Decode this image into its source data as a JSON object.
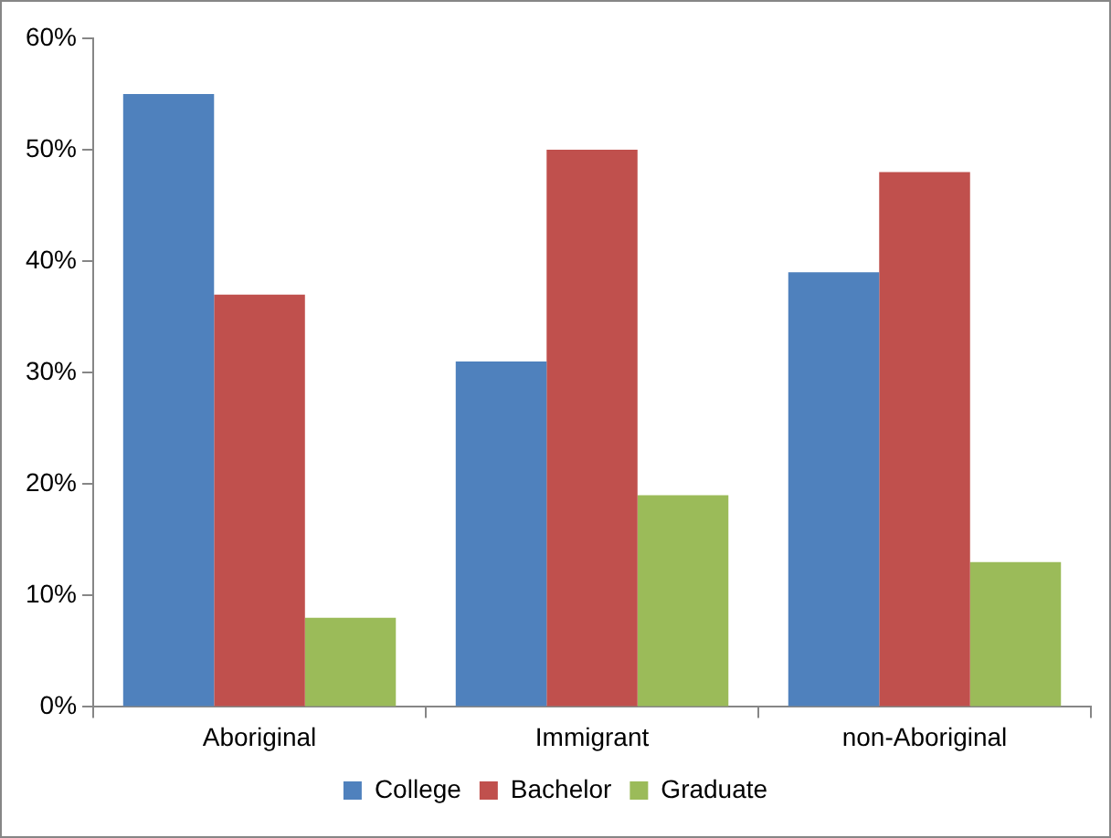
{
  "chart_data": {
    "type": "bar",
    "categories": [
      "Aboriginal",
      "Immigrant",
      "non-Aboriginal"
    ],
    "series": [
      {
        "name": "College",
        "color": "#4f81bd",
        "values": [
          55,
          31,
          39
        ]
      },
      {
        "name": "Bachelor",
        "color": "#c0504d",
        "values": [
          37,
          50,
          48
        ]
      },
      {
        "name": "Graduate",
        "color": "#9bbb59",
        "values": [
          8,
          19,
          13
        ]
      }
    ],
    "ylim": [
      0,
      60
    ],
    "yticks": [
      {
        "value": 0,
        "label": "0%"
      },
      {
        "value": 10,
        "label": "10%"
      },
      {
        "value": 20,
        "label": "20%"
      },
      {
        "value": 30,
        "label": "30%"
      },
      {
        "value": 40,
        "label": "40%"
      },
      {
        "value": 50,
        "label": "50%"
      },
      {
        "value": 60,
        "label": "60%"
      }
    ],
    "grid": false,
    "legend": "bottom"
  }
}
